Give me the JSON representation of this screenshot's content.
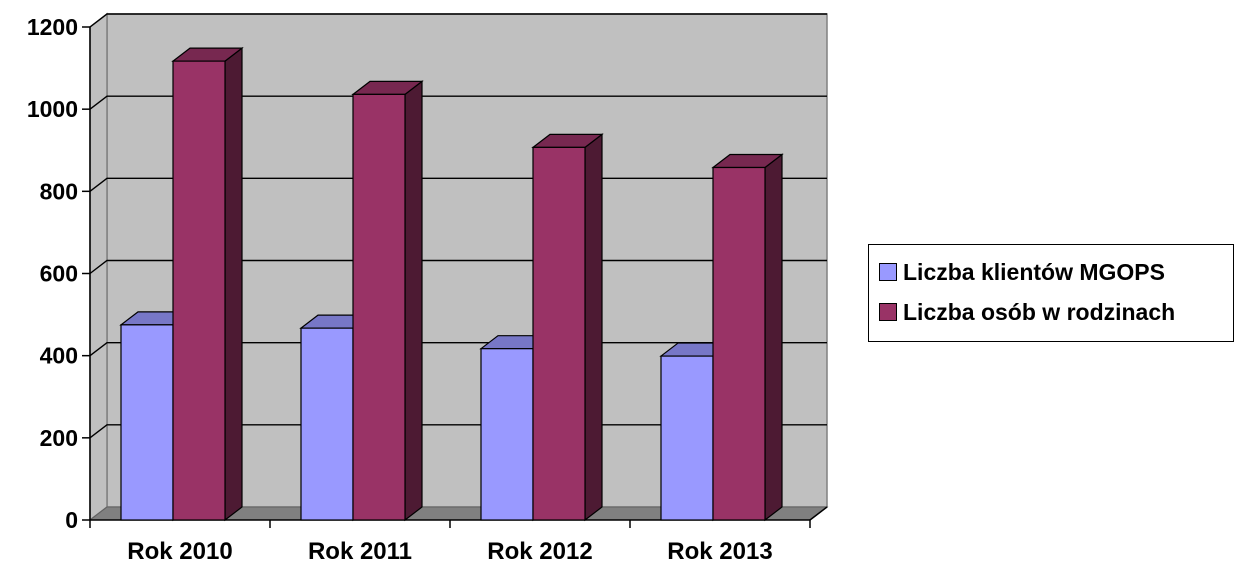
{
  "chart_data": {
    "type": "bar",
    "title": "",
    "xlabel": "",
    "ylabel": "",
    "categories": [
      "Rok 2010",
      "Rok 2011",
      "Rok 2012",
      "Rok 2013"
    ],
    "series": [
      {
        "name": "Liczba klientów MGOPS",
        "values": [
          475,
          467,
          417,
          399
        ],
        "color": "#9999ff"
      },
      {
        "name": "Liczba osób w rodzinach",
        "values": [
          1117,
          1036,
          907,
          858
        ],
        "color": "#993366"
      }
    ],
    "ylim": [
      0,
      1200
    ],
    "yticks": [
      "0",
      "200",
      "400",
      "600",
      "800",
      "1000",
      "1200"
    ],
    "grid": true,
    "plot_background": "#c0c0c0",
    "legend_position": "right",
    "style": "3d-column"
  }
}
